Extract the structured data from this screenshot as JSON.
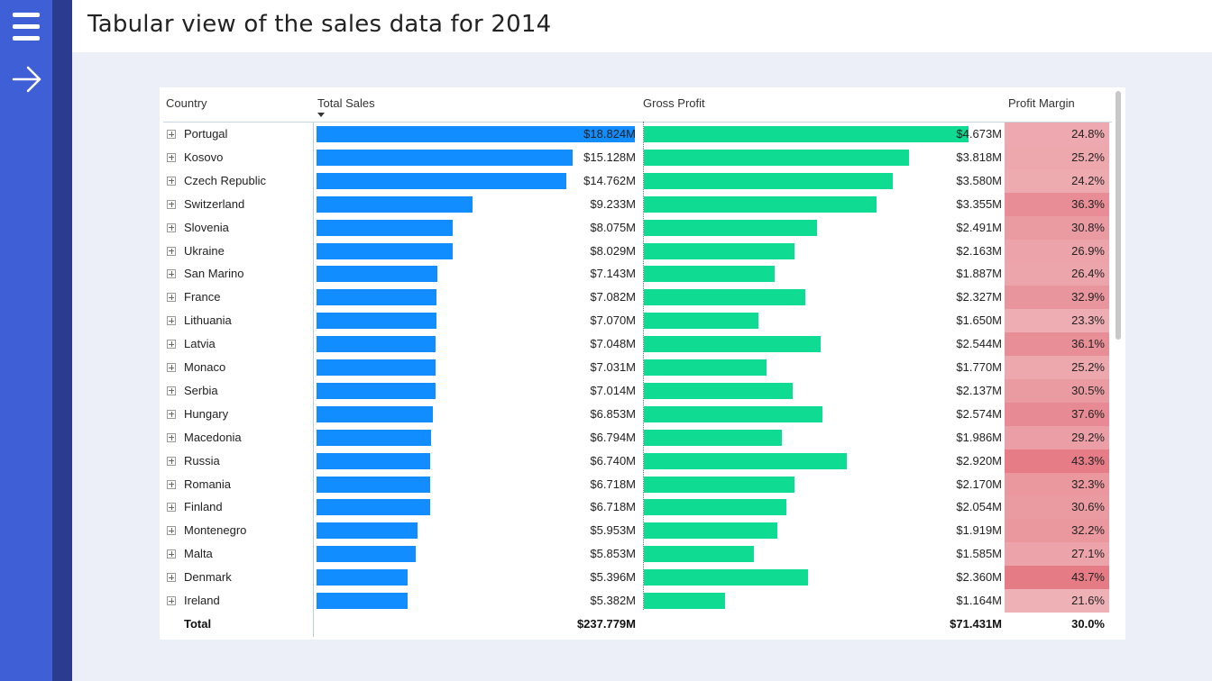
{
  "title": "Tabular view of the sales data for 2014",
  "columns": {
    "country": "Country",
    "sales": "Total Sales",
    "profit": "Gross Profit",
    "margin": "Profit Margin"
  },
  "scale": {
    "sales_max": 18.824,
    "profit_max": 4.673
  },
  "rows": [
    {
      "country": "Portugal",
      "sales": "$18.824M",
      "sales_num": 18.824,
      "profit": "$4.673M",
      "profit_num": 4.673,
      "margin": "24.8%",
      "margin_num": 24.8
    },
    {
      "country": "Kosovo",
      "sales": "$15.128M",
      "sales_num": 15.128,
      "profit": "$3.818M",
      "profit_num": 3.818,
      "margin": "25.2%",
      "margin_num": 25.2
    },
    {
      "country": "Czech Republic",
      "sales": "$14.762M",
      "sales_num": 14.762,
      "profit": "$3.580M",
      "profit_num": 3.58,
      "margin": "24.2%",
      "margin_num": 24.2
    },
    {
      "country": "Switzerland",
      "sales": "$9.233M",
      "sales_num": 9.233,
      "profit": "$3.355M",
      "profit_num": 3.355,
      "margin": "36.3%",
      "margin_num": 36.3
    },
    {
      "country": "Slovenia",
      "sales": "$8.075M",
      "sales_num": 8.075,
      "profit": "$2.491M",
      "profit_num": 2.491,
      "margin": "30.8%",
      "margin_num": 30.8
    },
    {
      "country": "Ukraine",
      "sales": "$8.029M",
      "sales_num": 8.029,
      "profit": "$2.163M",
      "profit_num": 2.163,
      "margin": "26.9%",
      "margin_num": 26.9
    },
    {
      "country": "San Marino",
      "sales": "$7.143M",
      "sales_num": 7.143,
      "profit": "$1.887M",
      "profit_num": 1.887,
      "margin": "26.4%",
      "margin_num": 26.4
    },
    {
      "country": "France",
      "sales": "$7.082M",
      "sales_num": 7.082,
      "profit": "$2.327M",
      "profit_num": 2.327,
      "margin": "32.9%",
      "margin_num": 32.9
    },
    {
      "country": "Lithuania",
      "sales": "$7.070M",
      "sales_num": 7.07,
      "profit": "$1.650M",
      "profit_num": 1.65,
      "margin": "23.3%",
      "margin_num": 23.3
    },
    {
      "country": "Latvia",
      "sales": "$7.048M",
      "sales_num": 7.048,
      "profit": "$2.544M",
      "profit_num": 2.544,
      "margin": "36.1%",
      "margin_num": 36.1
    },
    {
      "country": "Monaco",
      "sales": "$7.031M",
      "sales_num": 7.031,
      "profit": "$1.770M",
      "profit_num": 1.77,
      "margin": "25.2%",
      "margin_num": 25.2
    },
    {
      "country": "Serbia",
      "sales": "$7.014M",
      "sales_num": 7.014,
      "profit": "$2.137M",
      "profit_num": 2.137,
      "margin": "30.5%",
      "margin_num": 30.5
    },
    {
      "country": "Hungary",
      "sales": "$6.853M",
      "sales_num": 6.853,
      "profit": "$2.574M",
      "profit_num": 2.574,
      "margin": "37.6%",
      "margin_num": 37.6
    },
    {
      "country": "Macedonia",
      "sales": "$6.794M",
      "sales_num": 6.794,
      "profit": "$1.986M",
      "profit_num": 1.986,
      "margin": "29.2%",
      "margin_num": 29.2
    },
    {
      "country": "Russia",
      "sales": "$6.740M",
      "sales_num": 6.74,
      "profit": "$2.920M",
      "profit_num": 2.92,
      "margin": "43.3%",
      "margin_num": 43.3
    },
    {
      "country": "Romania",
      "sales": "$6.718M",
      "sales_num": 6.718,
      "profit": "$2.170M",
      "profit_num": 2.17,
      "margin": "32.3%",
      "margin_num": 32.3
    },
    {
      "country": "Finland",
      "sales": "$6.718M",
      "sales_num": 6.718,
      "profit": "$2.054M",
      "profit_num": 2.054,
      "margin": "30.6%",
      "margin_num": 30.6
    },
    {
      "country": "Montenegro",
      "sales": "$5.953M",
      "sales_num": 5.953,
      "profit": "$1.919M",
      "profit_num": 1.919,
      "margin": "32.2%",
      "margin_num": 32.2
    },
    {
      "country": "Malta",
      "sales": "$5.853M",
      "sales_num": 5.853,
      "profit": "$1.585M",
      "profit_num": 1.585,
      "margin": "27.1%",
      "margin_num": 27.1
    },
    {
      "country": "Denmark",
      "sales": "$5.396M",
      "sales_num": 5.396,
      "profit": "$2.360M",
      "profit_num": 2.36,
      "margin": "43.7%",
      "margin_num": 43.7
    },
    {
      "country": "Ireland",
      "sales": "$5.382M",
      "sales_num": 5.382,
      "profit": "$1.164M",
      "profit_num": 1.164,
      "margin": "21.6%",
      "margin_num": 21.6
    }
  ],
  "total": {
    "label": "Total",
    "sales": "$237.779M",
    "profit": "$71.431M",
    "margin": "30.0%"
  },
  "colors": {
    "sidebar": "#3f5fd6",
    "sidebar_strip": "#2b3b8f",
    "sales_bar": "#118dff",
    "profit_bar": "#0fdc92",
    "margin_low": "#eeb1b6",
    "margin_high": "#e57b85"
  },
  "icons": {
    "menu": "hamburger-menu-icon",
    "navigate": "arrow-right-icon",
    "expand": "plus-square-icon",
    "sort": "sort-descending-icon"
  }
}
